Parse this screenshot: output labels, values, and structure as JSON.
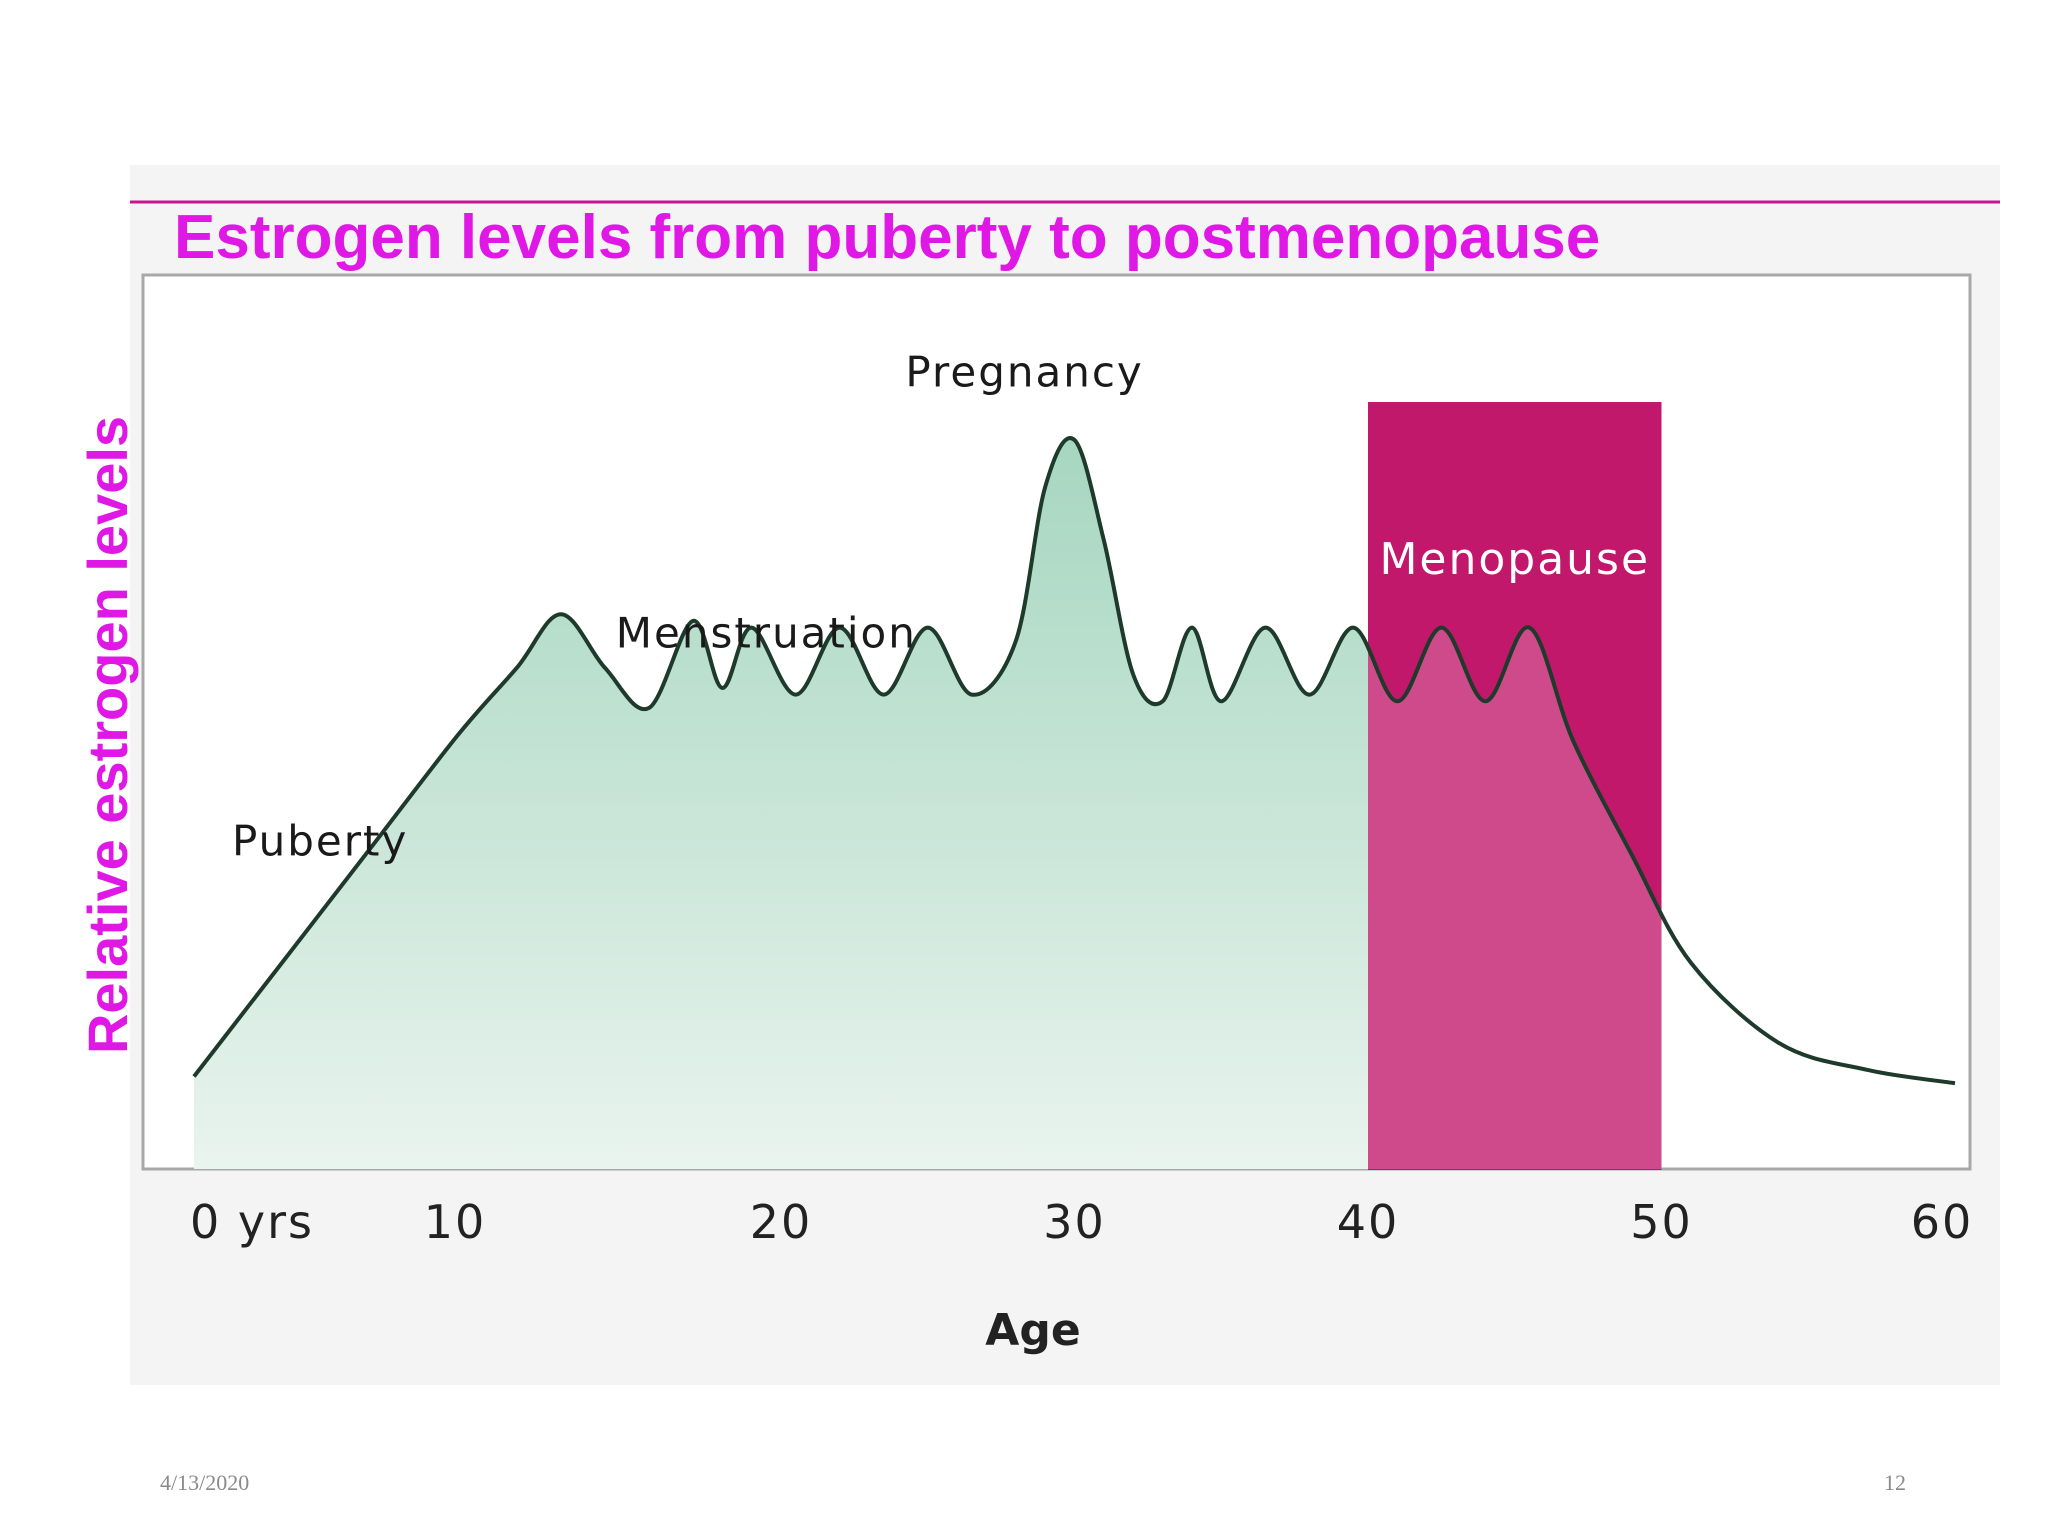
{
  "slide": {
    "date": "4/13/2020",
    "page_number": "12"
  },
  "colors": {
    "title": "#e018e6",
    "menopause": "#c2186b",
    "curve_fill": "#a6d6c0",
    "curve_line": "#1e3a2a"
  },
  "chart_data": {
    "type": "area",
    "title": "Estrogen levels from puberty to postmenopause",
    "xlabel": "Age",
    "ylabel": "Relative estrogen levels",
    "xlim": [
      0,
      60
    ],
    "x_ticks": [
      {
        "value": 0,
        "label": "0 yrs"
      },
      {
        "value": 10,
        "label": "10"
      },
      {
        "value": 20,
        "label": "20"
      },
      {
        "value": 30,
        "label": "30"
      },
      {
        "value": 40,
        "label": "40"
      },
      {
        "value": 50,
        "label": "50"
      },
      {
        "value": 60,
        "label": "60"
      }
    ],
    "y_ticks_shown": false,
    "grid": false,
    "series": [
      {
        "x": [
          0,
          3,
          6,
          9,
          11,
          12.5,
          14,
          15.5,
          17,
          18,
          19,
          20.5,
          22,
          23.5,
          25,
          26.5,
          28,
          29,
          30,
          31,
          32,
          33,
          34,
          35,
          36.5,
          38,
          39.5,
          41,
          42.5,
          44,
          45.5,
          47,
          49,
          51,
          54,
          57,
          60
        ],
        "y": [
          0.05,
          0.22,
          0.39,
          0.56,
          0.66,
          0.74,
          0.66,
          0.6,
          0.73,
          0.63,
          0.72,
          0.62,
          0.72,
          0.62,
          0.72,
          0.62,
          0.7,
          0.93,
          1.0,
          0.85,
          0.65,
          0.61,
          0.72,
          0.61,
          0.72,
          0.62,
          0.72,
          0.61,
          0.72,
          0.61,
          0.72,
          0.55,
          0.38,
          0.22,
          0.1,
          0.06,
          0.04
        ]
      }
    ],
    "regions": [
      {
        "label": "Menopause",
        "x_start": 40,
        "x_end": 50
      }
    ],
    "annotations": [
      {
        "text": "Puberty",
        "x": 4.3,
        "y": 0.38
      },
      {
        "text": "Menstruation",
        "x": 19.5,
        "y": 0.69
      },
      {
        "text": "Pregnancy",
        "x": 28.3,
        "y": 1.08
      }
    ]
  }
}
